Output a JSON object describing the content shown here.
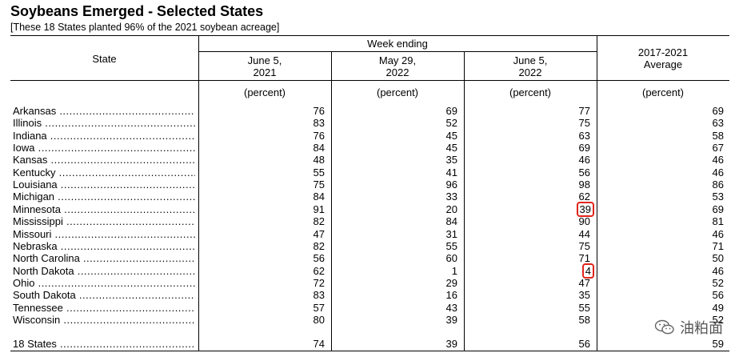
{
  "title": "Soybeans Emerged - Selected States",
  "subtitle": "[These 18 States planted 96% of the 2021 soybean acreage]",
  "headers": {
    "state": "State",
    "week_ending": "Week ending",
    "col1_line1": "June 5,",
    "col1_line2": "2021",
    "col2_line1": "May 29,",
    "col2_line2": "2022",
    "col3_line1": "June 5,",
    "col3_line2": "2022",
    "col4_line1": "2017-2021",
    "col4_line2": "Average",
    "unit": "(percent)"
  },
  "rows": [
    {
      "state": "Arkansas",
      "v": [
        "76",
        "69",
        "77",
        "69"
      ]
    },
    {
      "state": "Illinois",
      "v": [
        "83",
        "52",
        "75",
        "63"
      ]
    },
    {
      "state": "Indiana",
      "v": [
        "76",
        "45",
        "63",
        "58"
      ]
    },
    {
      "state": "Iowa",
      "v": [
        "84",
        "45",
        "69",
        "67"
      ]
    },
    {
      "state": "Kansas",
      "v": [
        "48",
        "35",
        "46",
        "46"
      ]
    },
    {
      "state": "Kentucky",
      "v": [
        "55",
        "41",
        "56",
        "46"
      ]
    },
    {
      "state": "Louisiana",
      "v": [
        "75",
        "96",
        "98",
        "86"
      ]
    },
    {
      "state": "Michigan",
      "v": [
        "84",
        "33",
        "62",
        "53"
      ]
    },
    {
      "state": "Minnesota",
      "v": [
        "91",
        "20",
        "39",
        "69"
      ]
    },
    {
      "state": "Mississippi",
      "v": [
        "82",
        "84",
        "90",
        "81"
      ]
    },
    {
      "state": "Missouri",
      "v": [
        "47",
        "31",
        "44",
        "46"
      ]
    },
    {
      "state": "Nebraska",
      "v": [
        "82",
        "55",
        "75",
        "71"
      ]
    },
    {
      "state": "North Carolina",
      "v": [
        "56",
        "60",
        "71",
        "50"
      ]
    },
    {
      "state": "North Dakota",
      "v": [
        "62",
        "1",
        "4",
        "46"
      ]
    },
    {
      "state": "Ohio",
      "v": [
        "72",
        "29",
        "47",
        "52"
      ]
    },
    {
      "state": "South Dakota",
      "v": [
        "83",
        "16",
        "35",
        "56"
      ]
    },
    {
      "state": "Tennessee",
      "v": [
        "57",
        "43",
        "55",
        "49"
      ]
    },
    {
      "state": "Wisconsin",
      "v": [
        "80",
        "39",
        "58",
        "52"
      ]
    }
  ],
  "total": {
    "state": "18 States",
    "v": [
      "74",
      "39",
      "56",
      "59"
    ]
  },
  "highlight_color": "#e0241b",
  "watermark": {
    "text": "油粕面",
    "icon": "wechat-icon"
  }
}
